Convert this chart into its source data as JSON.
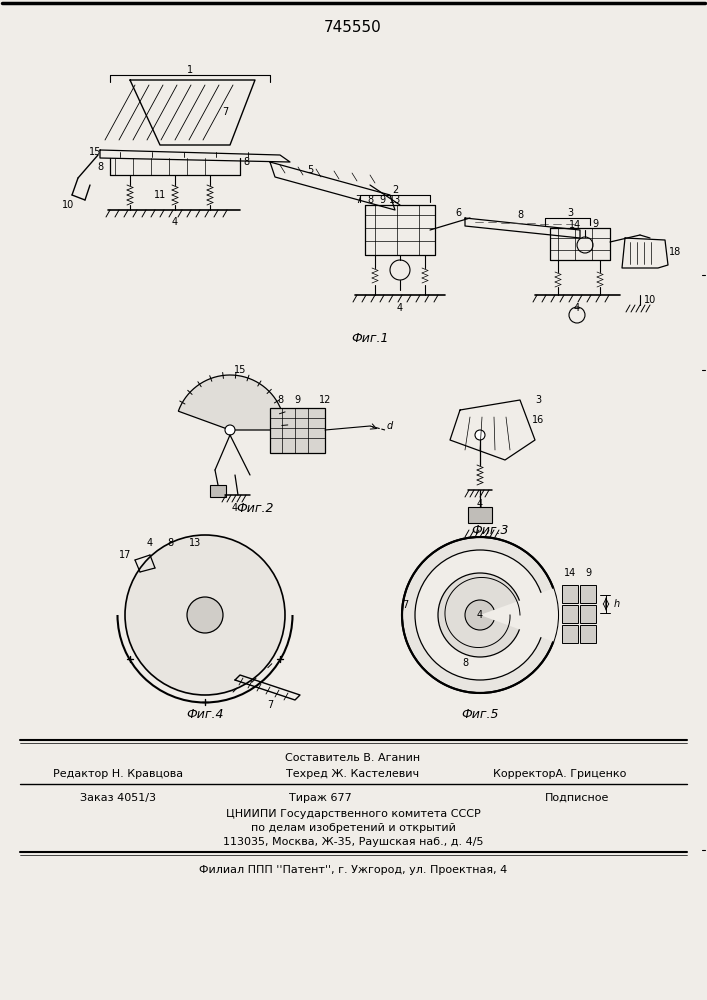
{
  "title": "745550",
  "bg_color": "#f0ede8",
  "fig_width": 7.07,
  "fig_height": 10.0,
  "footer": {
    "composer_label": "Составитель В. Аганин",
    "editor_label": "Редактор Н. Кравцова",
    "techred_label": "Техред Ж. Кастелевич",
    "corrector_label": "КорректорА. Гриценко",
    "order_label": "Заказ 4051/3",
    "tirazh_label": "Тираж 677",
    "podpisnoe_label": "Подписное",
    "cniip_label": "ЦНИИПИ Государственного комитета СССР",
    "cniip2_label": "по делам изобретений и открытий",
    "cniip3_label": "113035, Москва, Ж-35, Раушская наб., д. 4/5",
    "filial_label": "Филиал ППП ''Патент'', г. Ужгород, ул. Проектная, 4"
  },
  "fig_labels": {
    "fig1": "Фиг.1",
    "fig2": "Фиг.2",
    "fig3": "Фиг.3",
    "fig4": "Фиг.4",
    "fig5": "Фиг.5"
  }
}
